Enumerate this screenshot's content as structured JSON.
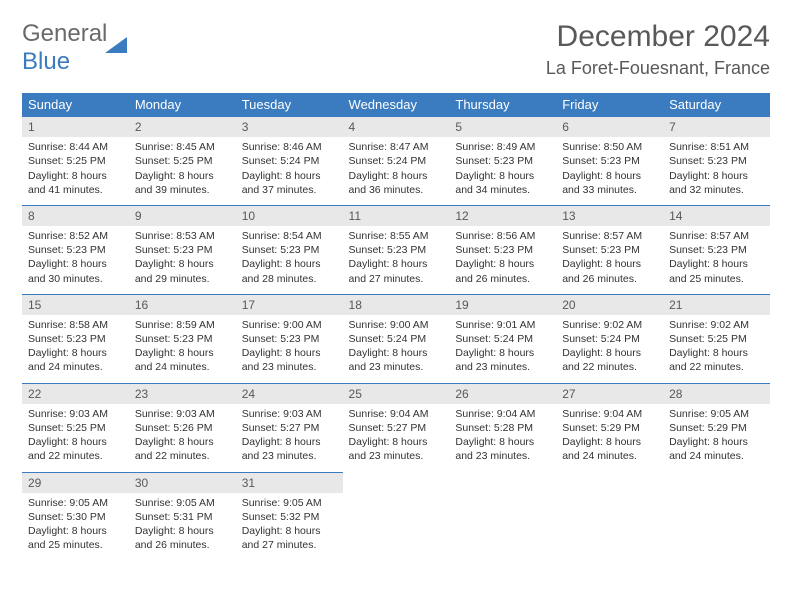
{
  "logo": {
    "text_general": "General",
    "text_blue": "Blue"
  },
  "title": "December 2024",
  "location": "La Foret-Fouesnant, France",
  "day_headers": [
    "Sunday",
    "Monday",
    "Tuesday",
    "Wednesday",
    "Thursday",
    "Friday",
    "Saturday"
  ],
  "colors": {
    "header_bg": "#3b7bbf",
    "daynum_bg": "#e8e8e8",
    "text": "#333333",
    "title_text": "#595959"
  },
  "weeks": [
    [
      {
        "n": "1",
        "sr": "8:44 AM",
        "ss": "5:25 PM",
        "dh": "8",
        "dm": "41"
      },
      {
        "n": "2",
        "sr": "8:45 AM",
        "ss": "5:25 PM",
        "dh": "8",
        "dm": "39"
      },
      {
        "n": "3",
        "sr": "8:46 AM",
        "ss": "5:24 PM",
        "dh": "8",
        "dm": "37"
      },
      {
        "n": "4",
        "sr": "8:47 AM",
        "ss": "5:24 PM",
        "dh": "8",
        "dm": "36"
      },
      {
        "n": "5",
        "sr": "8:49 AM",
        "ss": "5:23 PM",
        "dh": "8",
        "dm": "34"
      },
      {
        "n": "6",
        "sr": "8:50 AM",
        "ss": "5:23 PM",
        "dh": "8",
        "dm": "33"
      },
      {
        "n": "7",
        "sr": "8:51 AM",
        "ss": "5:23 PM",
        "dh": "8",
        "dm": "32"
      }
    ],
    [
      {
        "n": "8",
        "sr": "8:52 AM",
        "ss": "5:23 PM",
        "dh": "8",
        "dm": "30"
      },
      {
        "n": "9",
        "sr": "8:53 AM",
        "ss": "5:23 PM",
        "dh": "8",
        "dm": "29"
      },
      {
        "n": "10",
        "sr": "8:54 AM",
        "ss": "5:23 PM",
        "dh": "8",
        "dm": "28"
      },
      {
        "n": "11",
        "sr": "8:55 AM",
        "ss": "5:23 PM",
        "dh": "8",
        "dm": "27"
      },
      {
        "n": "12",
        "sr": "8:56 AM",
        "ss": "5:23 PM",
        "dh": "8",
        "dm": "26"
      },
      {
        "n": "13",
        "sr": "8:57 AM",
        "ss": "5:23 PM",
        "dh": "8",
        "dm": "26"
      },
      {
        "n": "14",
        "sr": "8:57 AM",
        "ss": "5:23 PM",
        "dh": "8",
        "dm": "25"
      }
    ],
    [
      {
        "n": "15",
        "sr": "8:58 AM",
        "ss": "5:23 PM",
        "dh": "8",
        "dm": "24"
      },
      {
        "n": "16",
        "sr": "8:59 AM",
        "ss": "5:23 PM",
        "dh": "8",
        "dm": "24"
      },
      {
        "n": "17",
        "sr": "9:00 AM",
        "ss": "5:23 PM",
        "dh": "8",
        "dm": "23"
      },
      {
        "n": "18",
        "sr": "9:00 AM",
        "ss": "5:24 PM",
        "dh": "8",
        "dm": "23"
      },
      {
        "n": "19",
        "sr": "9:01 AM",
        "ss": "5:24 PM",
        "dh": "8",
        "dm": "23"
      },
      {
        "n": "20",
        "sr": "9:02 AM",
        "ss": "5:24 PM",
        "dh": "8",
        "dm": "22"
      },
      {
        "n": "21",
        "sr": "9:02 AM",
        "ss": "5:25 PM",
        "dh": "8",
        "dm": "22"
      }
    ],
    [
      {
        "n": "22",
        "sr": "9:03 AM",
        "ss": "5:25 PM",
        "dh": "8",
        "dm": "22"
      },
      {
        "n": "23",
        "sr": "9:03 AM",
        "ss": "5:26 PM",
        "dh": "8",
        "dm": "22"
      },
      {
        "n": "24",
        "sr": "9:03 AM",
        "ss": "5:27 PM",
        "dh": "8",
        "dm": "23"
      },
      {
        "n": "25",
        "sr": "9:04 AM",
        "ss": "5:27 PM",
        "dh": "8",
        "dm": "23"
      },
      {
        "n": "26",
        "sr": "9:04 AM",
        "ss": "5:28 PM",
        "dh": "8",
        "dm": "23"
      },
      {
        "n": "27",
        "sr": "9:04 AM",
        "ss": "5:29 PM",
        "dh": "8",
        "dm": "24"
      },
      {
        "n": "28",
        "sr": "9:05 AM",
        "ss": "5:29 PM",
        "dh": "8",
        "dm": "24"
      }
    ],
    [
      {
        "n": "29",
        "sr": "9:05 AM",
        "ss": "5:30 PM",
        "dh": "8",
        "dm": "25"
      },
      {
        "n": "30",
        "sr": "9:05 AM",
        "ss": "5:31 PM",
        "dh": "8",
        "dm": "26"
      },
      {
        "n": "31",
        "sr": "9:05 AM",
        "ss": "5:32 PM",
        "dh": "8",
        "dm": "27"
      },
      null,
      null,
      null,
      null
    ]
  ],
  "labels": {
    "sunrise": "Sunrise:",
    "sunset": "Sunset:",
    "daylight": "Daylight:",
    "hours": "hours",
    "and": "and",
    "minutes": "minutes."
  }
}
